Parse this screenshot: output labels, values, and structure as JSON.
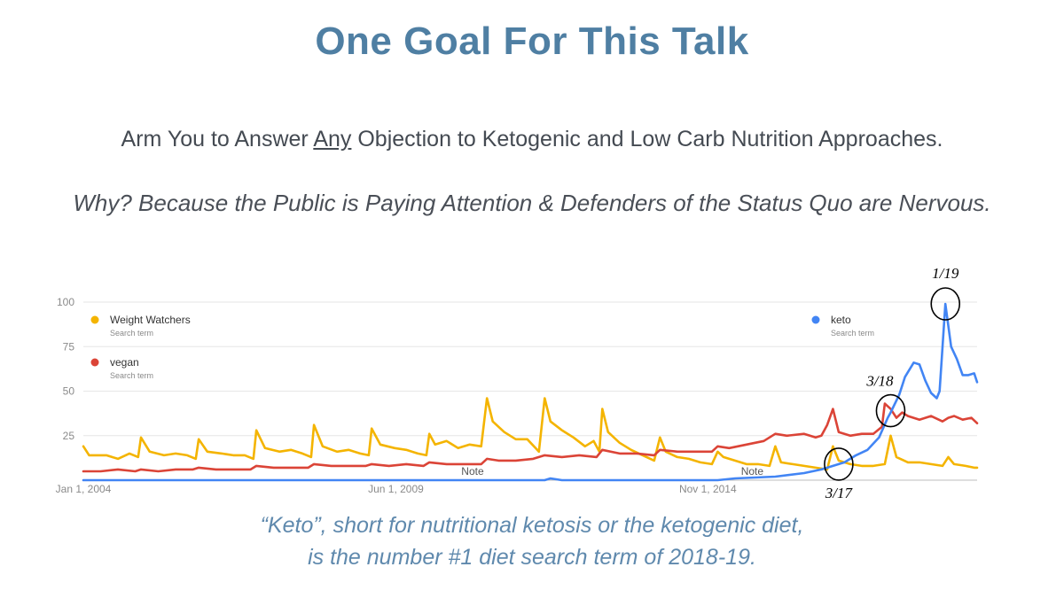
{
  "slide": {
    "title": "One Goal For This Talk",
    "subtitle_pre": "Arm You to Answer ",
    "subtitle_em": "Any",
    "subtitle_post": " Objection to Ketogenic and Low Carb Nutrition Approaches.",
    "why": "Why? Because the Public is Paying Attention & Defenders of the Status Quo are Nervous.",
    "caption_line1": "“Keto”, short for nutritional ketosis or the ketogenic diet,",
    "caption_line2": "is the number #1 diet search term of 2018-19."
  },
  "chart_data": {
    "type": "line",
    "x_start": 2004.0,
    "x_end": 2019.5,
    "ylim": [
      0,
      100
    ],
    "yticks": [
      0,
      25,
      50,
      75,
      100
    ],
    "ytick_labels": [
      "",
      "25",
      "50",
      "75",
      "100"
    ],
    "xticks": [
      {
        "x": 2004.0,
        "label": "Jan 1, 2004"
      },
      {
        "x": 2009.42,
        "label": "Jun 1, 2009"
      },
      {
        "x": 2014.83,
        "label": "Nov 1, 2014"
      }
    ],
    "grid": true,
    "legend_position": "top-left and top-right",
    "series": [
      {
        "name": "Weight Watchers",
        "subtext": "Search term",
        "color": "#f4b400",
        "points": [
          [
            2004.0,
            19
          ],
          [
            2004.1,
            14
          ],
          [
            2004.4,
            14
          ],
          [
            2004.6,
            12
          ],
          [
            2004.8,
            15
          ],
          [
            2004.95,
            13
          ],
          [
            2005.0,
            24
          ],
          [
            2005.15,
            16
          ],
          [
            2005.4,
            14
          ],
          [
            2005.6,
            15
          ],
          [
            2005.8,
            14
          ],
          [
            2005.95,
            12
          ],
          [
            2006.0,
            23
          ],
          [
            2006.15,
            16
          ],
          [
            2006.4,
            15
          ],
          [
            2006.6,
            14
          ],
          [
            2006.8,
            14
          ],
          [
            2006.95,
            12
          ],
          [
            2007.0,
            28
          ],
          [
            2007.15,
            18
          ],
          [
            2007.4,
            16
          ],
          [
            2007.6,
            17
          ],
          [
            2007.8,
            15
          ],
          [
            2007.95,
            13
          ],
          [
            2008.0,
            31
          ],
          [
            2008.15,
            19
          ],
          [
            2008.4,
            16
          ],
          [
            2008.6,
            17
          ],
          [
            2008.8,
            15
          ],
          [
            2008.95,
            14
          ],
          [
            2009.0,
            29
          ],
          [
            2009.15,
            20
          ],
          [
            2009.4,
            18
          ],
          [
            2009.6,
            17
          ],
          [
            2009.8,
            15
          ],
          [
            2009.95,
            14
          ],
          [
            2010.0,
            26
          ],
          [
            2010.1,
            20
          ],
          [
            2010.3,
            22
          ],
          [
            2010.5,
            18
          ],
          [
            2010.7,
            20
          ],
          [
            2010.9,
            19
          ],
          [
            2011.0,
            46
          ],
          [
            2011.1,
            33
          ],
          [
            2011.3,
            27
          ],
          [
            2011.5,
            23
          ],
          [
            2011.7,
            23
          ],
          [
            2011.9,
            16
          ],
          [
            2012.0,
            46
          ],
          [
            2012.1,
            33
          ],
          [
            2012.3,
            28
          ],
          [
            2012.5,
            24
          ],
          [
            2012.7,
            19
          ],
          [
            2012.85,
            22
          ],
          [
            2012.95,
            16
          ],
          [
            2013.0,
            40
          ],
          [
            2013.1,
            27
          ],
          [
            2013.3,
            21
          ],
          [
            2013.5,
            17
          ],
          [
            2013.7,
            14
          ],
          [
            2013.9,
            11
          ],
          [
            2014.0,
            24
          ],
          [
            2014.1,
            16
          ],
          [
            2014.3,
            13
          ],
          [
            2014.5,
            12
          ],
          [
            2014.7,
            10
          ],
          [
            2014.9,
            9
          ],
          [
            2015.0,
            16
          ],
          [
            2015.1,
            13
          ],
          [
            2015.3,
            11
          ],
          [
            2015.5,
            9
          ],
          [
            2015.7,
            9
          ],
          [
            2015.9,
            8
          ],
          [
            2016.0,
            19
          ],
          [
            2016.1,
            10
          ],
          [
            2016.3,
            9
          ],
          [
            2016.5,
            8
          ],
          [
            2016.7,
            7
          ],
          [
            2016.9,
            6
          ],
          [
            2017.0,
            19
          ],
          [
            2017.1,
            11
          ],
          [
            2017.3,
            9
          ],
          [
            2017.5,
            8
          ],
          [
            2017.7,
            8
          ],
          [
            2017.9,
            9
          ],
          [
            2018.0,
            25
          ],
          [
            2018.1,
            13
          ],
          [
            2018.3,
            10
          ],
          [
            2018.5,
            10
          ],
          [
            2018.7,
            9
          ],
          [
            2018.9,
            8
          ],
          [
            2019.0,
            13
          ],
          [
            2019.1,
            9
          ],
          [
            2019.3,
            8
          ],
          [
            2019.45,
            7
          ],
          [
            2019.5,
            7
          ]
        ]
      },
      {
        "name": "vegan",
        "subtext": "Search term",
        "color": "#db4437",
        "points": [
          [
            2004.0,
            5
          ],
          [
            2004.3,
            5
          ],
          [
            2004.6,
            6
          ],
          [
            2004.9,
            5
          ],
          [
            2005.0,
            6
          ],
          [
            2005.3,
            5
          ],
          [
            2005.6,
            6
          ],
          [
            2005.9,
            6
          ],
          [
            2006.0,
            7
          ],
          [
            2006.3,
            6
          ],
          [
            2006.6,
            6
          ],
          [
            2006.9,
            6
          ],
          [
            2007.0,
            8
          ],
          [
            2007.3,
            7
          ],
          [
            2007.6,
            7
          ],
          [
            2007.9,
            7
          ],
          [
            2008.0,
            9
          ],
          [
            2008.3,
            8
          ],
          [
            2008.6,
            8
          ],
          [
            2008.9,
            8
          ],
          [
            2009.0,
            9
          ],
          [
            2009.3,
            8
          ],
          [
            2009.6,
            9
          ],
          [
            2009.9,
            8
          ],
          [
            2010.0,
            10
          ],
          [
            2010.3,
            9
          ],
          [
            2010.6,
            9
          ],
          [
            2010.9,
            9
          ],
          [
            2011.0,
            12
          ],
          [
            2011.2,
            11
          ],
          [
            2011.5,
            11
          ],
          [
            2011.8,
            12
          ],
          [
            2012.0,
            14
          ],
          [
            2012.3,
            13
          ],
          [
            2012.6,
            14
          ],
          [
            2012.9,
            13
          ],
          [
            2013.0,
            17
          ],
          [
            2013.3,
            15
          ],
          [
            2013.6,
            15
          ],
          [
            2013.9,
            14
          ],
          [
            2014.0,
            17
          ],
          [
            2014.3,
            16
          ],
          [
            2014.6,
            16
          ],
          [
            2014.9,
            16
          ],
          [
            2015.0,
            19
          ],
          [
            2015.2,
            18
          ],
          [
            2015.5,
            20
          ],
          [
            2015.8,
            22
          ],
          [
            2016.0,
            26
          ],
          [
            2016.2,
            25
          ],
          [
            2016.5,
            26
          ],
          [
            2016.7,
            24
          ],
          [
            2016.8,
            25
          ],
          [
            2016.9,
            31
          ],
          [
            2017.0,
            40
          ],
          [
            2017.1,
            27
          ],
          [
            2017.3,
            25
          ],
          [
            2017.5,
            26
          ],
          [
            2017.7,
            26
          ],
          [
            2017.85,
            30
          ],
          [
            2017.9,
            43
          ],
          [
            2018.0,
            40
          ],
          [
            2018.1,
            35
          ],
          [
            2018.2,
            38
          ],
          [
            2018.3,
            36
          ],
          [
            2018.5,
            34
          ],
          [
            2018.7,
            36
          ],
          [
            2018.9,
            33
          ],
          [
            2019.0,
            35
          ],
          [
            2019.1,
            36
          ],
          [
            2019.25,
            34
          ],
          [
            2019.4,
            35
          ],
          [
            2019.5,
            32
          ]
        ]
      },
      {
        "name": "keto",
        "subtext": "Search term",
        "color": "#4285f4",
        "points": [
          [
            2004.0,
            0
          ],
          [
            2012.0,
            0
          ],
          [
            2012.1,
            1
          ],
          [
            2012.3,
            0
          ],
          [
            2015.0,
            0
          ],
          [
            2015.3,
            1
          ],
          [
            2016.0,
            2
          ],
          [
            2016.5,
            4
          ],
          [
            2016.8,
            6
          ],
          [
            2017.0,
            8
          ],
          [
            2017.2,
            10
          ],
          [
            2017.4,
            14
          ],
          [
            2017.6,
            17
          ],
          [
            2017.8,
            24
          ],
          [
            2017.95,
            35
          ],
          [
            2018.0,
            38
          ],
          [
            2018.15,
            48
          ],
          [
            2018.25,
            58
          ],
          [
            2018.4,
            66
          ],
          [
            2018.5,
            65
          ],
          [
            2018.6,
            56
          ],
          [
            2018.7,
            49
          ],
          [
            2018.8,
            46
          ],
          [
            2018.85,
            50
          ],
          [
            2018.95,
            99
          ],
          [
            2019.05,
            75
          ],
          [
            2019.15,
            68
          ],
          [
            2019.25,
            59
          ],
          [
            2019.35,
            59
          ],
          [
            2019.45,
            60
          ],
          [
            2019.5,
            55
          ]
        ]
      }
    ],
    "notes": [
      {
        "x": 2010.75,
        "label": "Note"
      },
      {
        "x": 2015.6,
        "label": "Note"
      }
    ],
    "annotations": [
      {
        "label": "1/19",
        "x": 2018.95,
        "y": 99,
        "label_side": "above"
      },
      {
        "label": "3/18",
        "x": 2018.0,
        "y": 39,
        "label_side": "above-left"
      },
      {
        "label": "3/17",
        "x": 2017.1,
        "y": 9,
        "label_side": "below"
      }
    ]
  }
}
